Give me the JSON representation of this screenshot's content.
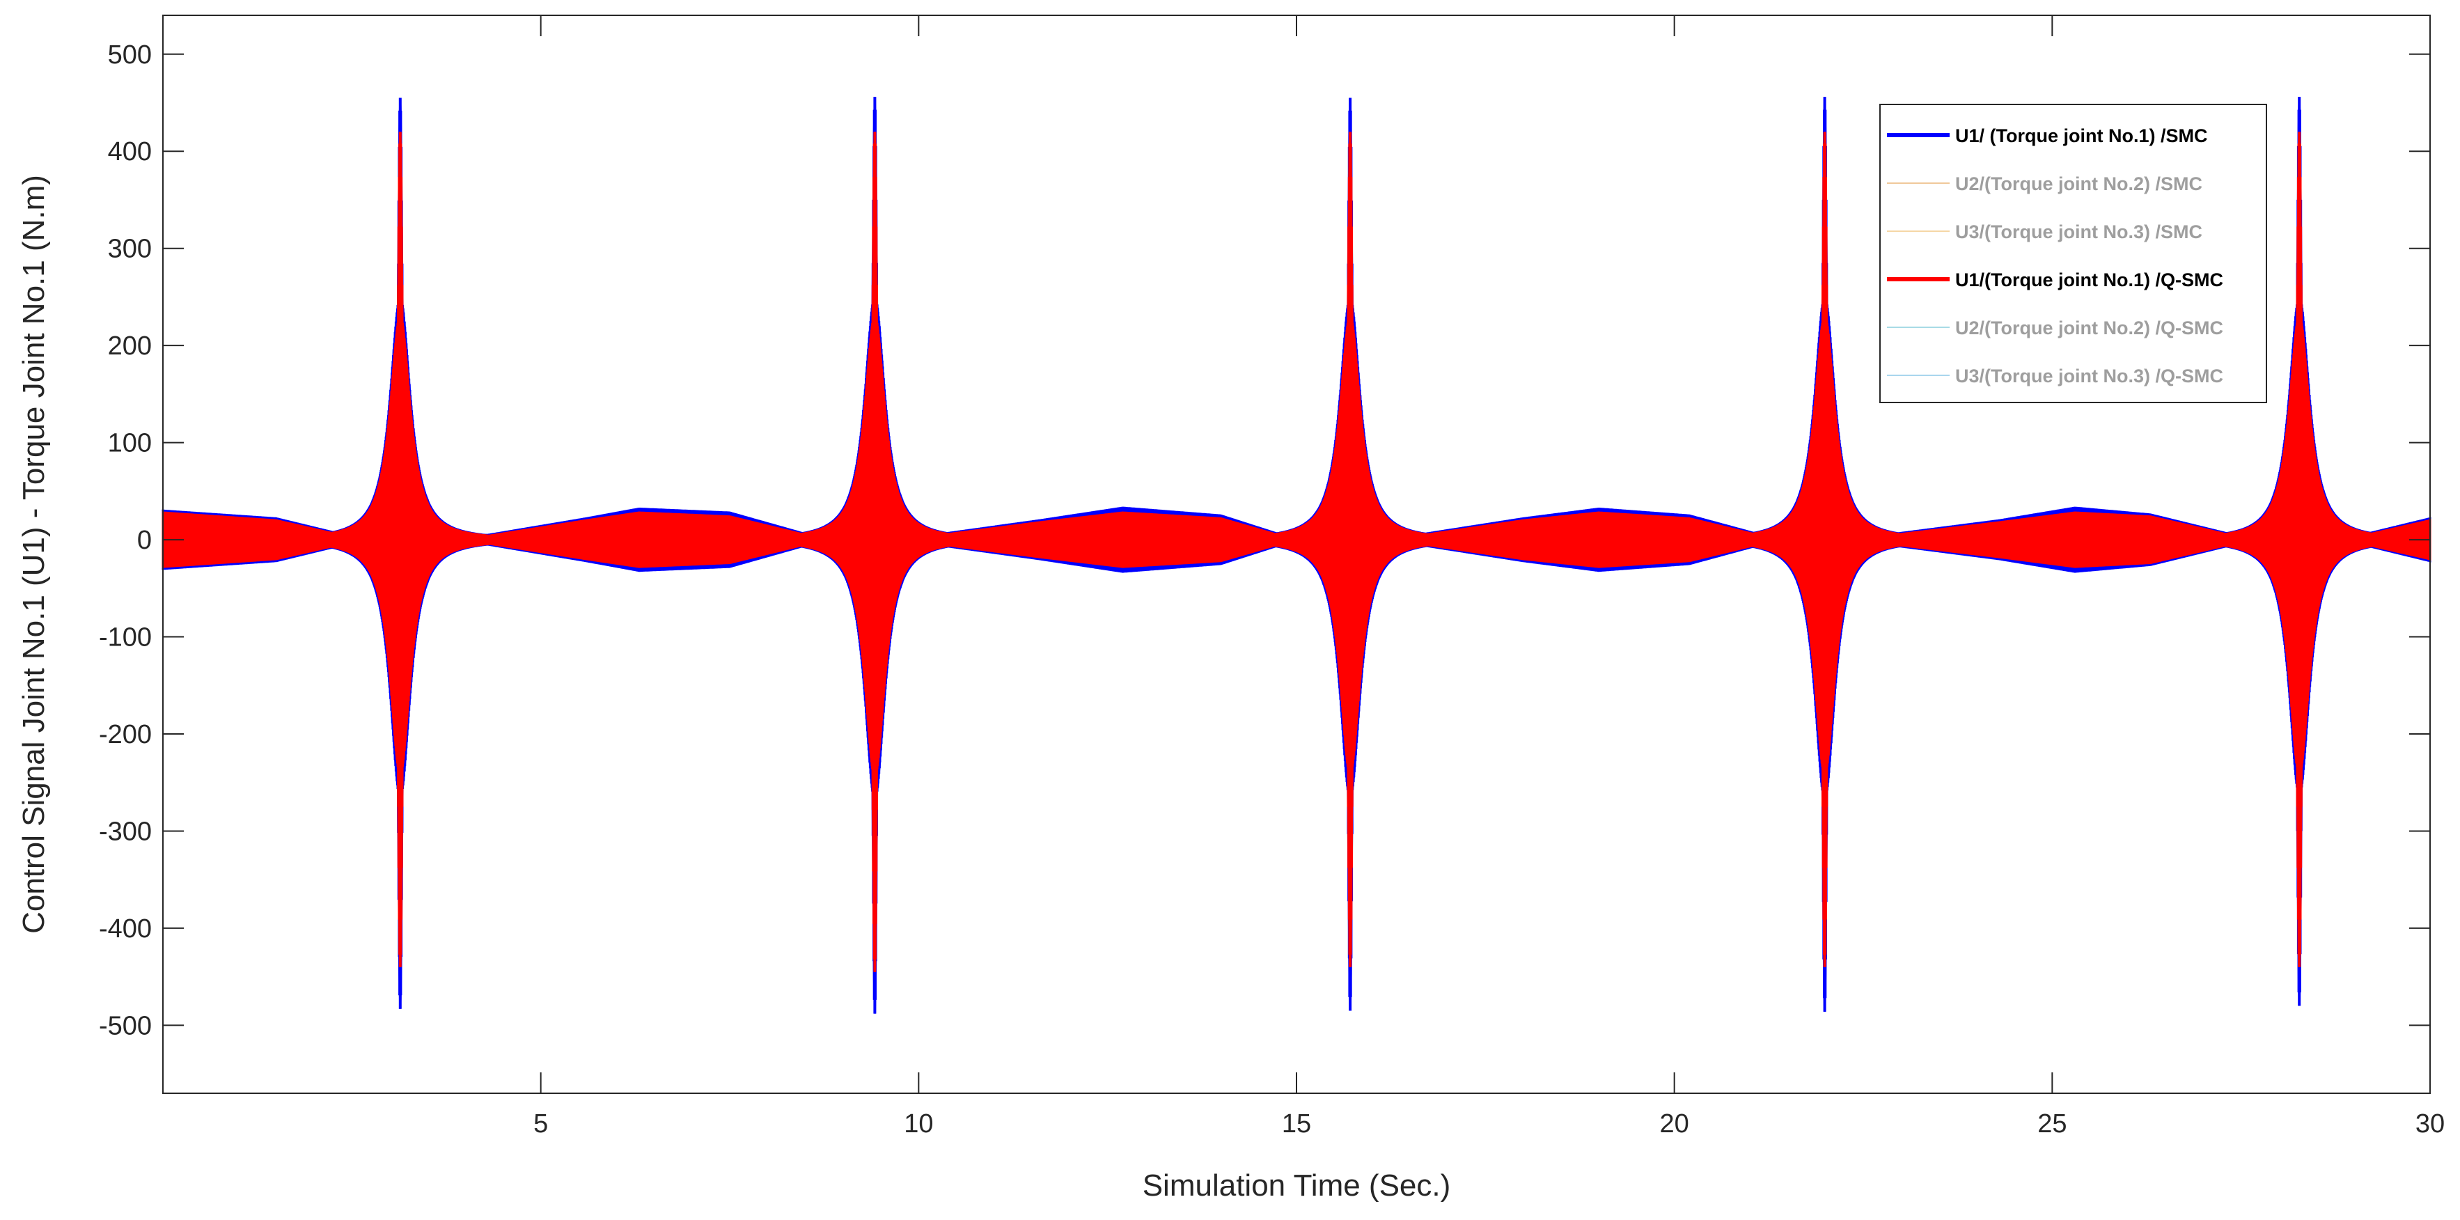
{
  "chart_data": {
    "type": "line",
    "title": "",
    "xlabel": "Simulation Time (Sec.)",
    "ylabel": "Control Signal Joint No.1 (U1) - Torque Joint No.1 (N.m)",
    "xlim": [
      0,
      30
    ],
    "ylim": [
      -570,
      540
    ],
    "x_ticks": [
      5,
      10,
      15,
      20,
      25,
      30
    ],
    "x_tick_labels": [
      "5",
      "10",
      "15",
      "20",
      "25",
      "30"
    ],
    "y_ticks": [
      500,
      400,
      300,
      200,
      100,
      0,
      -100,
      -200,
      -300,
      -400,
      -500
    ],
    "y_tick_labels": [
      "500",
      "400",
      "300",
      "200",
      "100",
      "0",
      "-100",
      "-200",
      "-300",
      "-400",
      "-500"
    ],
    "grid": false,
    "legend_position": "top-right",
    "spike_times": [
      3.14,
      9.42,
      15.71,
      21.99,
      28.27
    ],
    "series": [
      {
        "name": "U1/ (Torque joint No.1) /SMC",
        "color": "#0000ff",
        "emphasis": "bold",
        "spike_peaks": [
          {
            "x": 3.14,
            "max": 455,
            "min": -483
          },
          {
            "x": 9.42,
            "max": 456,
            "min": -488
          },
          {
            "x": 15.71,
            "max": 455,
            "min": -485
          },
          {
            "x": 21.99,
            "max": 456,
            "min": -486
          },
          {
            "x": 28.27,
            "max": 456,
            "min": -480
          }
        ],
        "envelope": {
          "x": [
            0,
            1.5,
            2.4,
            4.3,
            5.6,
            6.3,
            7.5,
            8.5,
            10.3,
            11.6,
            12.7,
            14.0,
            14.8,
            16.6,
            18.0,
            19.0,
            20.2,
            21.1,
            22.9,
            24.3,
            25.3,
            26.3,
            27.4,
            29.1,
            30
          ],
          "amp": [
            30,
            22,
            5,
            5,
            22,
            32,
            28,
            6,
            6,
            20,
            33,
            25,
            5,
            5,
            22,
            32,
            25,
            6,
            6,
            20,
            33,
            26,
            5,
            5,
            22
          ]
        }
      },
      {
        "name": "U2/(Torque joint No.2) /SMC",
        "color": "#f0c89a",
        "emphasis": "faded"
      },
      {
        "name": "U3/(Torque joint No.3) /SMC",
        "color": "#f5d7a6",
        "emphasis": "faded"
      },
      {
        "name": "U1/(Torque joint No.1) /Q-SMC",
        "color": "#ff0000",
        "emphasis": "bold",
        "spike_peaks": [
          {
            "x": 3.14,
            "max": 420,
            "min": -440
          },
          {
            "x": 9.42,
            "max": 420,
            "min": -445
          },
          {
            "x": 15.71,
            "max": 420,
            "min": -440
          },
          {
            "x": 21.99,
            "max": 420,
            "min": -440
          },
          {
            "x": 28.27,
            "max": 420,
            "min": -440
          }
        ],
        "envelope": {
          "x": [
            0,
            1.5,
            2.4,
            4.3,
            5.6,
            6.3,
            7.5,
            8.5,
            10.3,
            11.6,
            12.7,
            14.0,
            14.8,
            16.6,
            18.0,
            19.0,
            20.2,
            21.1,
            22.9,
            24.3,
            25.3,
            26.3,
            27.4,
            29.1,
            30
          ],
          "amp": [
            28,
            20,
            4,
            4,
            20,
            28,
            24,
            5,
            5,
            18,
            28,
            22,
            4,
            4,
            20,
            28,
            22,
            5,
            5,
            18,
            28,
            24,
            4,
            4,
            20
          ]
        }
      },
      {
        "name": "U2/(Torque joint No.2) /Q-SMC",
        "color": "#a8dbe6",
        "emphasis": "faded"
      },
      {
        "name": "U3/(Torque joint No.3) /Q-SMC",
        "color": "#a9d6ee",
        "emphasis": "faded"
      }
    ]
  }
}
